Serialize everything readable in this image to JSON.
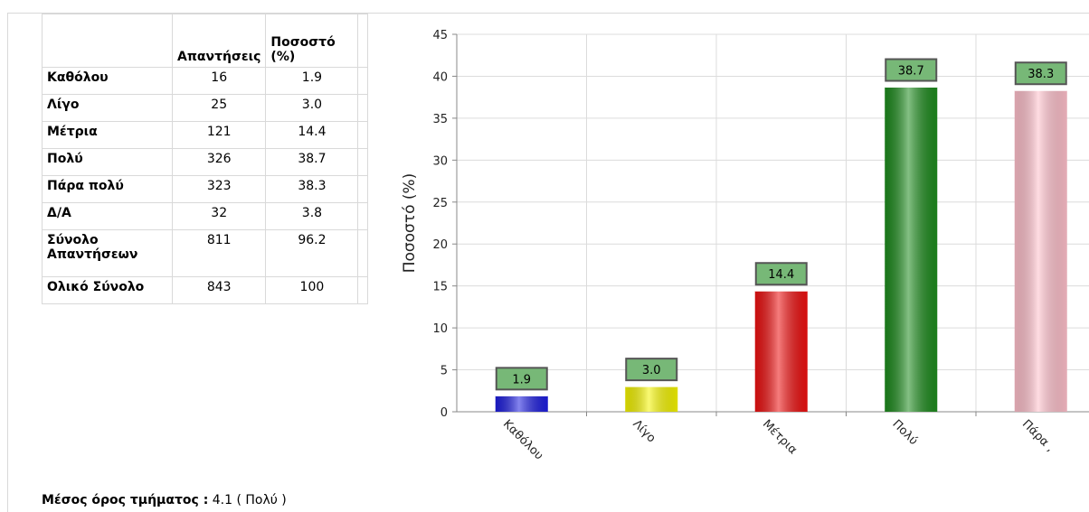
{
  "table": {
    "headers": [
      "",
      "Απαντήσεις",
      "Ποσοστό (%)"
    ],
    "rows": [
      {
        "label": "Καθόλου",
        "count": "16",
        "pct": "1.9"
      },
      {
        "label": "Λίγο",
        "count": "25",
        "pct": "3.0"
      },
      {
        "label": "Μέτρια",
        "count": "121",
        "pct": "14.4"
      },
      {
        "label": "Πολύ",
        "count": "326",
        "pct": "38.7"
      },
      {
        "label": "Πάρα πολύ",
        "count": "323",
        "pct": "38.3"
      },
      {
        "label": "Δ/Α",
        "count": "32",
        "pct": "3.8"
      },
      {
        "label": "Σύνολο Απαντήσεων",
        "count": "811",
        "pct": "96.2"
      },
      {
        "label": "Ολικό Σύνολο",
        "count": "843",
        "pct": "100"
      }
    ]
  },
  "footer": {
    "label": "Μέσος όρος τμήματος :",
    "value": " 4.1 ( Πολύ )"
  },
  "chart_data": {
    "type": "bar",
    "categories": [
      "Καθόλου",
      "Λίγο",
      "Μέτρια",
      "Πολύ",
      "Πάρα πολύ"
    ],
    "category_tick_labels": [
      "Καθόλου",
      "Λίγο",
      "Μέτρια",
      "Πολύ",
      "Πάρα ,"
    ],
    "values": [
      1.9,
      3.0,
      14.4,
      38.7,
      38.3
    ],
    "data_labels": [
      "1.9",
      "3.0",
      "14.4",
      "38.7",
      "38.3"
    ],
    "colors": [
      "#1f1fe0",
      "#f5f500",
      "#ee1111",
      "#1e8c1e",
      "#ffc0cb"
    ],
    "label_box_color": "#77b877",
    "ylabel": "Ποσοστό (%)",
    "xlabel": "",
    "title": "",
    "ylim": [
      0,
      45
    ],
    "yticks": [
      0,
      5,
      10,
      15,
      20,
      25,
      30,
      35,
      40,
      45
    ],
    "grid": true
  }
}
